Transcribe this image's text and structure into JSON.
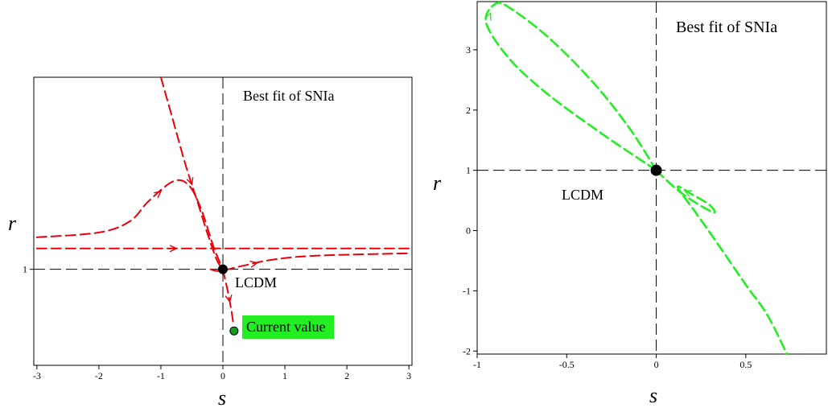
{
  "chart_data": [
    {
      "type": "line",
      "panel": "left",
      "xlabel": "s",
      "ylabel": "r",
      "xlim": [
        -3.05,
        3.05
      ],
      "x_ticks": [
        -3,
        -2,
        -1,
        0,
        1,
        2,
        3
      ],
      "y_ticks": [
        1
      ],
      "ylim": [
        -0.2,
        3.4
      ],
      "series_color": "#e8000b",
      "fixed_point": {
        "label": "LCDM",
        "x": 0,
        "y": 1
      },
      "current_point": {
        "label": "Current value",
        "x": 0.18,
        "y": 0.23,
        "color": "#1a9a1a"
      },
      "annotations": [
        "Best fit of SNIa"
      ],
      "series": [
        {
          "points": [
            [
              -1.0,
              3.4
            ],
            [
              -0.8,
              2.85
            ],
            [
              -0.6,
              2.3
            ],
            [
              -0.4,
              1.82
            ],
            [
              -0.25,
              1.45
            ],
            [
              -0.1,
              1.12
            ],
            [
              0,
              1.0
            ]
          ]
        },
        {
          "points": [
            [
              -3.0,
              1.4
            ],
            [
              -2.0,
              1.46
            ],
            [
              -1.5,
              1.6
            ],
            [
              -1.2,
              1.85
            ],
            [
              -0.8,
              2.1
            ],
            [
              -0.55,
              2.05
            ],
            [
              -0.35,
              1.75
            ],
            [
              -0.15,
              1.28
            ],
            [
              0,
              1.0
            ]
          ]
        },
        {
          "points": [
            [
              -3.0,
              1.26
            ],
            [
              -1.5,
              1.26
            ],
            [
              0,
              1.26
            ],
            [
              1.5,
              1.26
            ],
            [
              3.0,
              1.26
            ]
          ]
        },
        {
          "points": [
            [
              -0.2,
              1.0
            ],
            [
              -0.05,
              0.98
            ],
            [
              0.3,
              1.04
            ],
            [
              0.8,
              1.12
            ],
            [
              1.5,
              1.17
            ],
            [
              3.0,
              1.2
            ]
          ]
        },
        {
          "points": [
            [
              0,
              1.0
            ],
            [
              0.08,
              0.72
            ],
            [
              0.14,
              0.47
            ],
            [
              0.17,
              0.31
            ]
          ]
        }
      ]
    },
    {
      "type": "line",
      "panel": "right",
      "xlabel": "s",
      "ylabel": "r",
      "xlim": [
        -1.0,
        0.95
      ],
      "ylim": [
        -2.05,
        3.8
      ],
      "x_ticks": [
        -1,
        -0.5,
        0,
        0.5
      ],
      "x_tick_labels": [
        "-1",
        "-0.5",
        "0",
        "0.5"
      ],
      "y_ticks": [
        -2,
        -1,
        0,
        1,
        2,
        3
      ],
      "series_color": "#22ee22",
      "fixed_point": {
        "label": "LCDM",
        "x": 0,
        "y": 1
      },
      "annotations": [
        "Best fit of SNIa"
      ],
      "series": [
        {
          "points": [
            [
              0,
              1.0
            ],
            [
              -0.3,
              1.6
            ],
            [
              -0.6,
              2.25
            ],
            [
              -0.82,
              2.85
            ],
            [
              -0.95,
              3.45
            ],
            [
              -0.9,
              3.76
            ],
            [
              -0.82,
              3.7
            ],
            [
              -0.6,
              3.2
            ],
            [
              -0.35,
              2.45
            ],
            [
              -0.15,
              1.7
            ],
            [
              0,
              1.0
            ]
          ]
        },
        {
          "points": [
            [
              0,
              1.0
            ],
            [
              0.1,
              0.72
            ],
            [
              0.2,
              0.5
            ],
            [
              0.32,
              0.3
            ],
            [
              0.3,
              0.42
            ],
            [
              0.2,
              0.6
            ],
            [
              0.12,
              0.72
            ],
            [
              0.22,
              0.3
            ],
            [
              0.35,
              -0.25
            ],
            [
              0.5,
              -0.9
            ],
            [
              0.62,
              -1.4
            ],
            [
              0.73,
              -2.05
            ]
          ]
        }
      ]
    }
  ]
}
